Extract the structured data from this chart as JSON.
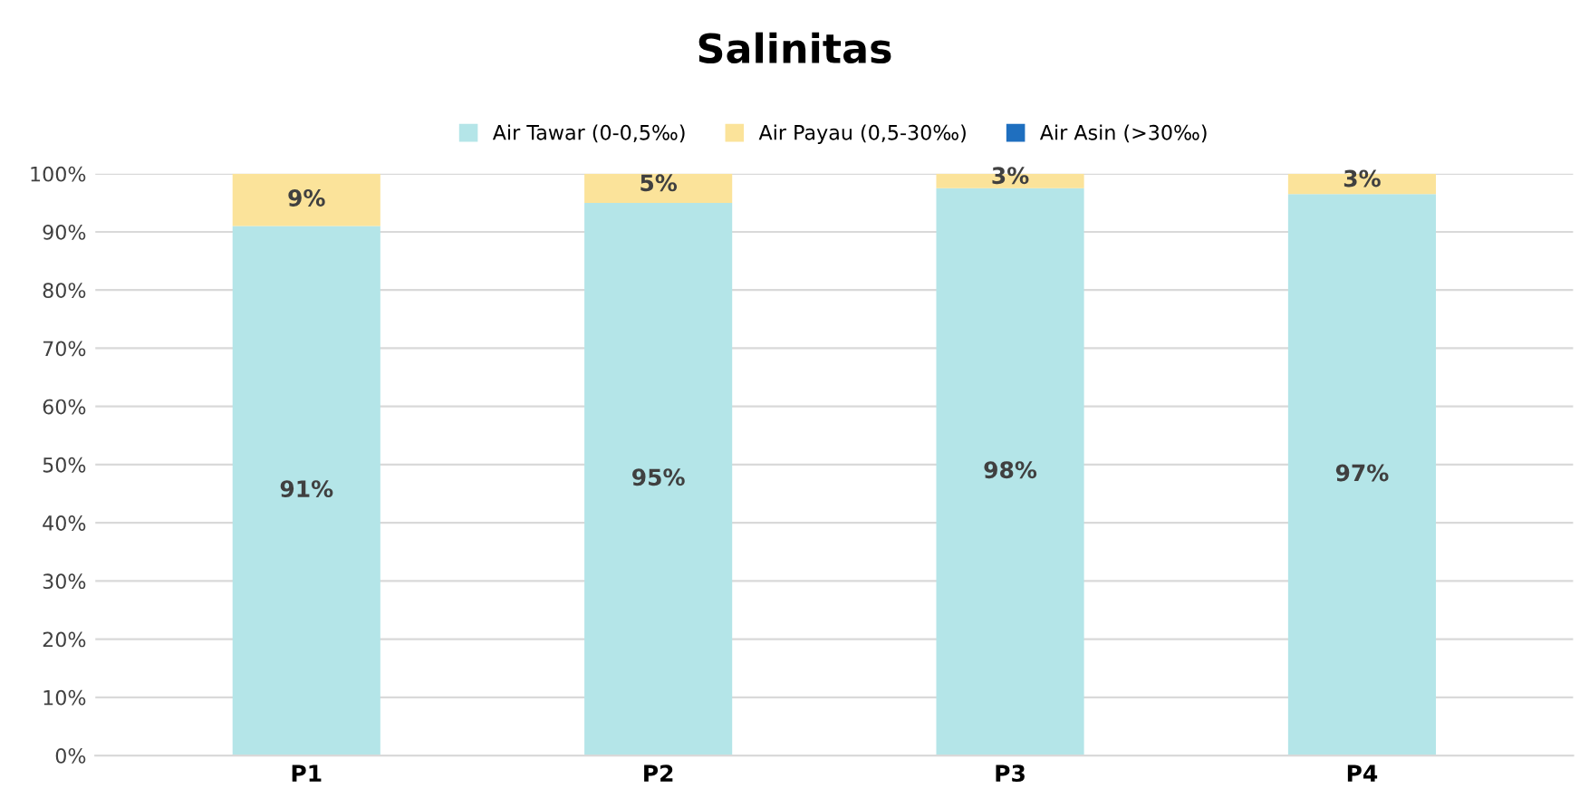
{
  "chart_data": {
    "type": "bar",
    "stacked": true,
    "title": "Salinitas",
    "categories": [
      "P1",
      "P2",
      "P3",
      "P4"
    ],
    "series": [
      {
        "name": "Air Tawar (0-0,5‰)",
        "color": "#b4e5e8",
        "values": [
          91,
          95,
          97.5,
          96.5
        ],
        "value_labels": [
          "91%",
          "95%",
          "98%",
          "97%"
        ]
      },
      {
        "name": "Air Payau (0,5-30‰)",
        "color": "#fbe39a",
        "values": [
          9,
          5,
          2.5,
          3.5
        ],
        "value_labels": [
          "9%",
          "5%",
          "3%",
          "3%"
        ]
      },
      {
        "name": "Air Asin (>30‰)",
        "color": "#1f6fbf",
        "values": [
          0,
          0,
          0,
          0
        ]
      }
    ],
    "ylim": [
      0,
      100
    ],
    "yticks": [
      {
        "value": 0,
        "label": "0%"
      },
      {
        "value": 10,
        "label": "10%"
      },
      {
        "value": 20,
        "label": "20%"
      },
      {
        "value": 30,
        "label": "30%"
      },
      {
        "value": 40,
        "label": "40%"
      },
      {
        "value": 50,
        "label": "50%"
      },
      {
        "value": 60,
        "label": "60%"
      },
      {
        "value": 70,
        "label": "70%"
      },
      {
        "value": 80,
        "label": "80%"
      },
      {
        "value": 90,
        "label": "90%"
      },
      {
        "value": 100,
        "label": "100%"
      }
    ],
    "grid": "y",
    "legend": "top"
  }
}
